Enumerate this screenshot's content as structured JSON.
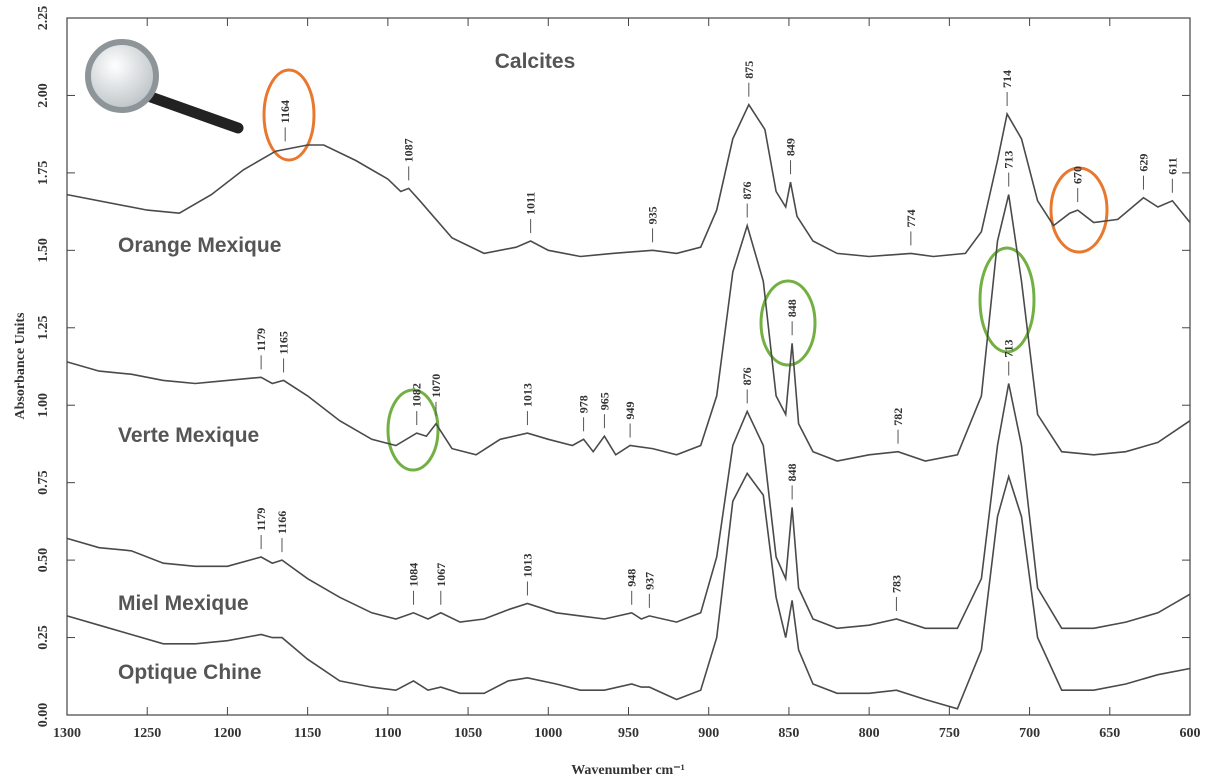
{
  "chart_data": {
    "type": "line",
    "title": "Calcites",
    "x_label": "Wavenumber cm⁻¹",
    "y_label": "Absorbance Units",
    "xlim": [
      1300,
      600
    ],
    "ylim": [
      0,
      2.25
    ],
    "xticks": [
      1300,
      1250,
      1200,
      1150,
      1100,
      1050,
      1000,
      950,
      900,
      850,
      800,
      750,
      700,
      650,
      600
    ],
    "yticks": [
      {
        "value": 0,
        "label": "0.00"
      },
      {
        "value": 0.25,
        "label": "0.25"
      },
      {
        "value": 0.5,
        "label": "0.50"
      },
      {
        "value": 0.75,
        "label": "0.75"
      },
      {
        "value": 1,
        "label": "1.00"
      },
      {
        "value": 1.25,
        "label": "1.25"
      },
      {
        "value": 1.5,
        "label": "1.50"
      },
      {
        "value": 1.75,
        "label": "1.75"
      },
      {
        "value": 2,
        "label": "2.00"
      },
      {
        "value": 2.25,
        "label": "2.25"
      }
    ],
    "series": [
      {
        "name": "Orange Mexique",
        "color": "#4a4a4a",
        "x": [
          1300,
          1250,
          1230,
          1210,
          1190,
          1170,
          1150,
          1140,
          1120,
          1100,
          1092,
          1087,
          1080,
          1060,
          1040,
          1020,
          1011,
          1000,
          980,
          960,
          935,
          920,
          905,
          895,
          885,
          875,
          865,
          858,
          852,
          849,
          845,
          835,
          820,
          800,
          774,
          760,
          740,
          730,
          720,
          714,
          705,
          695,
          685,
          675,
          670,
          660,
          645,
          629,
          620,
          611,
          600
        ],
        "values": [
          1.68,
          1.63,
          1.62,
          1.68,
          1.76,
          1.82,
          1.84,
          1.84,
          1.79,
          1.73,
          1.69,
          1.7,
          1.66,
          1.54,
          1.49,
          1.51,
          1.53,
          1.5,
          1.48,
          1.49,
          1.5,
          1.49,
          1.51,
          1.63,
          1.86,
          1.97,
          1.89,
          1.69,
          1.64,
          1.72,
          1.61,
          1.53,
          1.49,
          1.48,
          1.49,
          1.48,
          1.49,
          1.56,
          1.79,
          1.94,
          1.86,
          1.66,
          1.58,
          1.62,
          1.63,
          1.59,
          1.6,
          1.67,
          1.64,
          1.66,
          1.59
        ],
        "peaks": [
          1164,
          1087,
          1011,
          935,
          875,
          849,
          774,
          714,
          670,
          629,
          611
        ]
      },
      {
        "name": "Verte Mexique",
        "color": "#4a4a4a",
        "x": [
          1300,
          1280,
          1260,
          1240,
          1220,
          1200,
          1179,
          1172,
          1165,
          1150,
          1130,
          1110,
          1095,
          1082,
          1076,
          1070,
          1060,
          1045,
          1030,
          1013,
          1000,
          985,
          978,
          972,
          965,
          958,
          949,
          935,
          920,
          905,
          895,
          885,
          876,
          866,
          858,
          852,
          848,
          844,
          835,
          820,
          800,
          782,
          765,
          745,
          730,
          720,
          713,
          705,
          695,
          680,
          660,
          640,
          620,
          600
        ],
        "values": [
          1.14,
          1.11,
          1.1,
          1.08,
          1.07,
          1.08,
          1.09,
          1.07,
          1.08,
          1.03,
          0.95,
          0.89,
          0.87,
          0.91,
          0.9,
          0.94,
          0.86,
          0.84,
          0.89,
          0.91,
          0.89,
          0.87,
          0.89,
          0.85,
          0.9,
          0.84,
          0.87,
          0.86,
          0.84,
          0.87,
          1.03,
          1.43,
          1.58,
          1.4,
          1.03,
          0.97,
          1.2,
          0.94,
          0.85,
          0.82,
          0.84,
          0.85,
          0.82,
          0.84,
          1.03,
          1.53,
          1.68,
          1.4,
          0.97,
          0.85,
          0.84,
          0.85,
          0.88,
          0.95
        ],
        "peaks": [
          1179,
          1165,
          1082,
          1070,
          1013,
          978,
          965,
          949,
          876,
          848,
          782,
          713
        ]
      },
      {
        "name": "Miel Mexique",
        "color": "#4a4a4a",
        "x": [
          1300,
          1280,
          1260,
          1240,
          1220,
          1200,
          1179,
          1172,
          1166,
          1150,
          1130,
          1110,
          1095,
          1084,
          1075,
          1067,
          1055,
          1040,
          1025,
          1013,
          995,
          980,
          965,
          948,
          942,
          937,
          920,
          905,
          895,
          885,
          876,
          866,
          858,
          852,
          848,
          844,
          835,
          820,
          800,
          783,
          765,
          745,
          730,
          720,
          713,
          705,
          695,
          680,
          660,
          640,
          620,
          600
        ],
        "values": [
          0.57,
          0.54,
          0.53,
          0.49,
          0.48,
          0.48,
          0.51,
          0.49,
          0.5,
          0.44,
          0.38,
          0.33,
          0.31,
          0.33,
          0.31,
          0.33,
          0.3,
          0.31,
          0.34,
          0.36,
          0.33,
          0.32,
          0.31,
          0.33,
          0.31,
          0.32,
          0.3,
          0.33,
          0.51,
          0.87,
          0.98,
          0.87,
          0.51,
          0.44,
          0.67,
          0.41,
          0.31,
          0.28,
          0.29,
          0.31,
          0.28,
          0.28,
          0.44,
          0.87,
          1.07,
          0.87,
          0.41,
          0.28,
          0.28,
          0.3,
          0.33,
          0.39
        ],
        "peaks": [
          1179,
          1166,
          1084,
          1067,
          1013,
          948,
          937,
          876,
          848,
          783,
          713
        ]
      },
      {
        "name": "Optique Chine",
        "color": "#4a4a4a",
        "x": [
          1300,
          1280,
          1260,
          1240,
          1220,
          1200,
          1179,
          1172,
          1166,
          1150,
          1130,
          1110,
          1095,
          1084,
          1075,
          1067,
          1055,
          1040,
          1025,
          1013,
          995,
          980,
          965,
          948,
          942,
          937,
          920,
          905,
          895,
          885,
          876,
          866,
          858,
          852,
          848,
          844,
          835,
          820,
          800,
          783,
          765,
          745,
          730,
          720,
          713,
          705,
          695,
          680,
          660,
          640,
          620,
          600
        ],
        "values": [
          0.32,
          0.29,
          0.26,
          0.23,
          0.23,
          0.24,
          0.26,
          0.25,
          0.25,
          0.18,
          0.11,
          0.09,
          0.08,
          0.11,
          0.08,
          0.09,
          0.07,
          0.07,
          0.11,
          0.12,
          0.1,
          0.08,
          0.08,
          0.1,
          0.09,
          0.09,
          0.05,
          0.08,
          0.25,
          0.69,
          0.78,
          0.71,
          0.38,
          0.25,
          0.37,
          0.21,
          0.1,
          0.07,
          0.07,
          0.08,
          0.05,
          0.02,
          0.21,
          0.64,
          0.77,
          0.64,
          0.25,
          0.08,
          0.08,
          0.1,
          0.13,
          0.15
        ]
      }
    ]
  }
}
